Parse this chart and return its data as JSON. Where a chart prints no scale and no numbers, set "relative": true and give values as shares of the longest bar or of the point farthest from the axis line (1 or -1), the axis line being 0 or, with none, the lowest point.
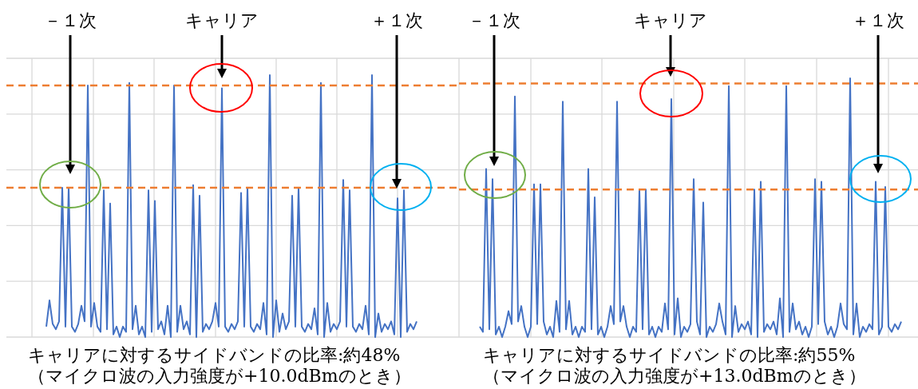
{
  "chart_data": [
    {
      "type": "line",
      "relative": true,
      "color": "#4472c4",
      "grid": true,
      "categories": [
        null,
        null,
        null,
        null,
        null,
        null,
        null,
        null,
        null,
        null,
        null,
        null,
        null,
        null,
        null,
        null,
        null,
        null,
        null,
        null,
        null,
        null,
        null,
        null,
        null,
        null,
        null,
        null,
        null,
        null,
        null,
        null,
        null,
        null,
        null,
        null,
        null,
        null,
        null,
        null,
        null,
        null,
        null,
        null,
        null,
        null,
        null,
        null,
        null,
        null,
        null,
        null,
        null,
        null,
        null,
        null,
        null,
        null,
        null,
        null,
        null,
        null,
        null,
        null,
        null,
        null,
        null,
        null,
        null,
        null,
        null,
        null,
        null,
        null,
        null,
        null,
        null,
        null,
        null,
        null,
        null,
        null,
        null,
        null,
        null,
        null,
        null,
        null,
        null,
        null,
        null,
        null,
        null,
        null,
        null,
        null,
        null,
        null,
        null,
        null,
        null,
        null,
        null,
        null,
        null,
        null,
        null,
        null,
        null,
        null,
        null,
        null,
        null,
        null,
        null,
        null,
        null
      ],
      "values": [
        0.04,
        0.14,
        0.05,
        0.03,
        0.06,
        0.57,
        0.04,
        0.57,
        0.04,
        0.02,
        0.05,
        0.12,
        0.06,
        0.96,
        0.04,
        0.13,
        0.04,
        0.02,
        0.56,
        0.03,
        0.51,
        0.01,
        0.04,
        0,
        0.04,
        0.02,
        0.97,
        0.03,
        0.12,
        0.01,
        0.04,
        0,
        0.56,
        0.02,
        0.52,
        0.03,
        0.06,
        0.01,
        0.12,
        0,
        0.96,
        0.02,
        0.12,
        0.03,
        0.06,
        0.01,
        0.58,
        0,
        0.54,
        0.02,
        0.05,
        0.03,
        0.06,
        0.13,
        0.04,
        0.95,
        0.04,
        0.02,
        0.05,
        0.03,
        0.06,
        0.55,
        0.04,
        0.57,
        0.04,
        0.02,
        0.05,
        0.03,
        0.13,
        0.01,
        1.0,
        0,
        0.14,
        0.02,
        0.09,
        0.03,
        0.06,
        0.54,
        0.04,
        0.57,
        0.04,
        0.02,
        0.05,
        0.03,
        0.11,
        0.01,
        0.97,
        0,
        0.13,
        0.02,
        0.05,
        0.03,
        0.06,
        0.6,
        0.04,
        0.56,
        0.04,
        0.02,
        0.05,
        0.03,
        0.12,
        0.01,
        1.0,
        0,
        0.09,
        0.02,
        0.05,
        0.03,
        0.06,
        0.01,
        0.53,
        0,
        0.56,
        0.02,
        0.05,
        0.03,
        0.06
      ],
      "ref_lines": [
        {
          "axis": "y",
          "value": 0.96,
          "color": "#ed7d31",
          "line_style": "dashed"
        },
        {
          "axis": "y",
          "value": 0.57,
          "color": "#ed7d31",
          "line_style": "dashed"
        }
      ],
      "annotations": [
        "－１次",
        "キャリア",
        "＋１次",
        "キャリアに対するサイドバンドの比率:約48%",
        "（マイクロ波の入力強度が+10.0dBmのとき）"
      ]
    },
    {
      "type": "line",
      "relative": true,
      "color": "#4472c4",
      "grid": true,
      "categories": [
        null,
        null,
        null,
        null,
        null,
        null,
        null,
        null,
        null,
        null,
        null,
        null,
        null,
        null,
        null,
        null,
        null,
        null,
        null,
        null,
        null,
        null,
        null,
        null,
        null,
        null,
        null,
        null,
        null,
        null,
        null,
        null,
        null,
        null,
        null,
        null,
        null,
        null,
        null,
        null,
        null,
        null,
        null,
        null,
        null,
        null,
        null,
        null,
        null,
        null,
        null,
        null,
        null,
        null,
        null,
        null,
        null,
        null,
        null,
        null,
        null,
        null,
        null,
        null,
        null,
        null,
        null,
        null,
        null,
        null,
        null,
        null,
        null,
        null,
        null,
        null,
        null,
        null,
        null,
        null,
        null,
        null,
        null,
        null,
        null,
        null,
        null,
        null,
        null,
        null,
        null,
        null,
        null,
        null,
        null,
        null,
        null,
        null,
        null,
        null,
        null,
        null,
        null,
        null,
        null,
        null,
        null,
        null,
        null,
        null,
        null,
        null,
        null,
        null,
        null,
        null,
        null,
        null,
        null,
        null,
        null,
        null,
        null,
        null,
        null,
        null,
        null,
        null,
        null,
        null,
        null,
        null,
        null
      ],
      "values": [
        0.04,
        0.02,
        0.65,
        0.03,
        0.61,
        0.01,
        0.04,
        0,
        0.04,
        0.1,
        0.05,
        0.93,
        0.06,
        0.12,
        0.04,
        0,
        0.04,
        0.59,
        0.05,
        0.59,
        0.06,
        0.01,
        0.04,
        0,
        0.14,
        0.02,
        0.91,
        0.03,
        0.14,
        0.01,
        0.04,
        0,
        0.04,
        0.02,
        0.65,
        0.03,
        0.54,
        0.01,
        0.04,
        0,
        0.04,
        0.12,
        0.05,
        0.91,
        0.06,
        0.12,
        0.04,
        0,
        0.04,
        0.02,
        0.57,
        0.03,
        0.57,
        0.01,
        0.04,
        0,
        0.04,
        0.02,
        0.13,
        0.03,
        0.92,
        0.01,
        0.15,
        0,
        0.04,
        0.02,
        0.05,
        0.61,
        0.06,
        0.01,
        0.52,
        0,
        0.04,
        0.02,
        0.05,
        0.13,
        0.06,
        0.01,
        0.97,
        0,
        0.12,
        0.02,
        0.05,
        0.03,
        0.06,
        0.01,
        0.57,
        0,
        0.6,
        0.02,
        0.05,
        0.03,
        0.06,
        0.01,
        0.15,
        0,
        0.97,
        0.02,
        0.13,
        0.03,
        0.06,
        0.01,
        0.04,
        0,
        0.04,
        0.61,
        0.05,
        0.6,
        0.06,
        0.01,
        0.04,
        0,
        0.04,
        0.13,
        0.05,
        0.03,
        1.0,
        0.01,
        0.13,
        0,
        0.04,
        0.02,
        0.05,
        0.03,
        0.6,
        0.01,
        0.04,
        0.58,
        0.04,
        0.02,
        0.05,
        0.03,
        0.06
      ],
      "ref_lines": [
        {
          "axis": "y",
          "value": 0.98,
          "color": "#ed7d31",
          "line_style": "dashed"
        },
        {
          "axis": "y",
          "value": 0.57,
          "color": "#ed7d31",
          "line_style": "dashed"
        }
      ],
      "annotations": [
        "－１次",
        "キャリア",
        "＋１次",
        "キャリアに対するサイドバンドの比率:約55%",
        "（マイクロ波の入力強度が+13.0dBmのとき）"
      ]
    }
  ]
}
